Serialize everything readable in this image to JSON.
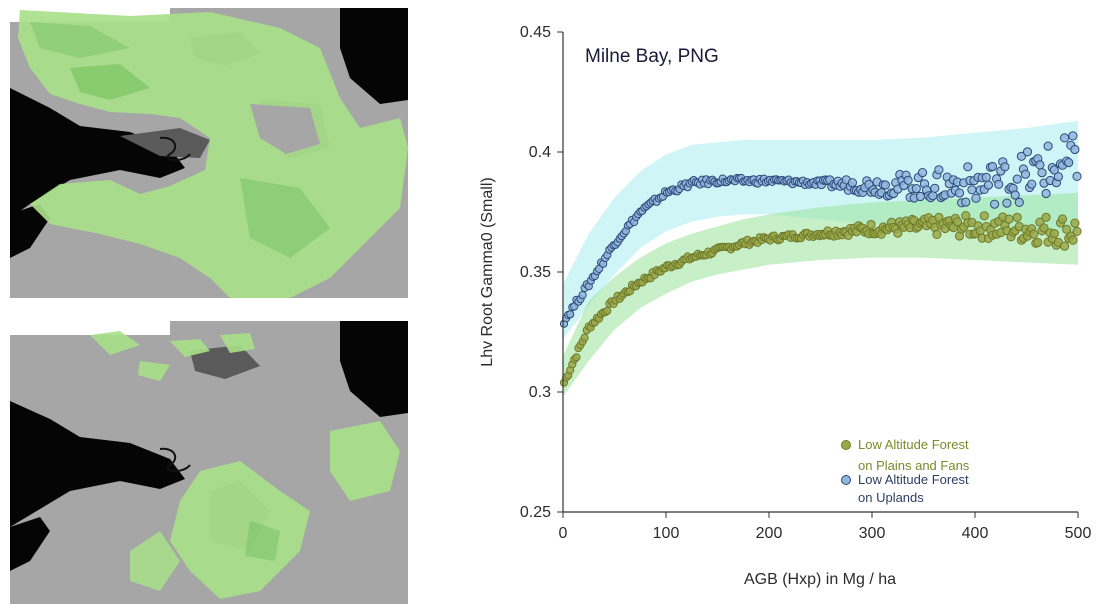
{
  "chart_data": {
    "type": "scatter",
    "title": "Milne Bay, PNG",
    "xlabel": "AGB (Hxp) in Mg / ha",
    "ylabel": "Lhv Root Gamma0 (Small)",
    "xlim": [
      0,
      500
    ],
    "ylim": [
      0.25,
      0.45
    ],
    "xticks": [
      0,
      100,
      200,
      300,
      400,
      500
    ],
    "yticks": [
      0.25,
      0.3,
      0.35,
      0.4,
      0.45
    ],
    "ytick_labels": [
      "0.25",
      "0.3",
      "0.35",
      "0.4",
      "0.45"
    ],
    "grid": false,
    "legend_position": "bottom-right",
    "series": [
      {
        "name": "Low Altitude Forest on Plains and Fans",
        "legend_lines": [
          "Low Altitude Forest",
          "on Plains and Fans"
        ],
        "color": "#9aa84a",
        "edge": "#6e7a2a",
        "band_color": "#9be39b",
        "x": [
          0,
          25,
          50,
          75,
          100,
          125,
          150,
          175,
          200,
          250,
          300,
          350,
          400,
          450,
          500
        ],
        "values": [
          0.303,
          0.327,
          0.338,
          0.346,
          0.352,
          0.356,
          0.359,
          0.362,
          0.364,
          0.366,
          0.368,
          0.369,
          0.369,
          0.368,
          0.367
        ],
        "band_upper": [
          0.315,
          0.338,
          0.348,
          0.356,
          0.362,
          0.366,
          0.369,
          0.372,
          0.374,
          0.377,
          0.379,
          0.38,
          0.381,
          0.382,
          0.383
        ],
        "band_lower": [
          0.298,
          0.313,
          0.326,
          0.335,
          0.341,
          0.346,
          0.349,
          0.351,
          0.353,
          0.355,
          0.356,
          0.356,
          0.355,
          0.354,
          0.353
        ]
      },
      {
        "name": "Low Altitude Forest on Uplands",
        "legend_lines": [
          "Low Altitude Forest",
          "on Uplands"
        ],
        "color": "#8fb6dc",
        "edge": "#2d4a7a",
        "band_color": "#a8ecf0",
        "x": [
          0,
          25,
          50,
          75,
          100,
          125,
          150,
          175,
          200,
          250,
          300,
          350,
          400,
          450,
          500
        ],
        "values": [
          0.329,
          0.345,
          0.362,
          0.375,
          0.383,
          0.387,
          0.388,
          0.388,
          0.388,
          0.387,
          0.386,
          0.386,
          0.386,
          0.39,
          0.395
        ],
        "band_upper": [
          0.345,
          0.366,
          0.381,
          0.392,
          0.399,
          0.403,
          0.404,
          0.405,
          0.405,
          0.405,
          0.405,
          0.406,
          0.408,
          0.41,
          0.413
        ],
        "band_lower": [
          0.322,
          0.336,
          0.349,
          0.36,
          0.367,
          0.371,
          0.373,
          0.374,
          0.374,
          0.372,
          0.37,
          0.369,
          0.368,
          0.367,
          0.366
        ]
      }
    ]
  },
  "maps": {
    "base_color": "#a6a6a6",
    "water_color": "#050505",
    "dark_patch_color": "#5a5a5a",
    "highlight_color": "#a8e08a",
    "highlight_dark_color": "#6fbf5a"
  }
}
